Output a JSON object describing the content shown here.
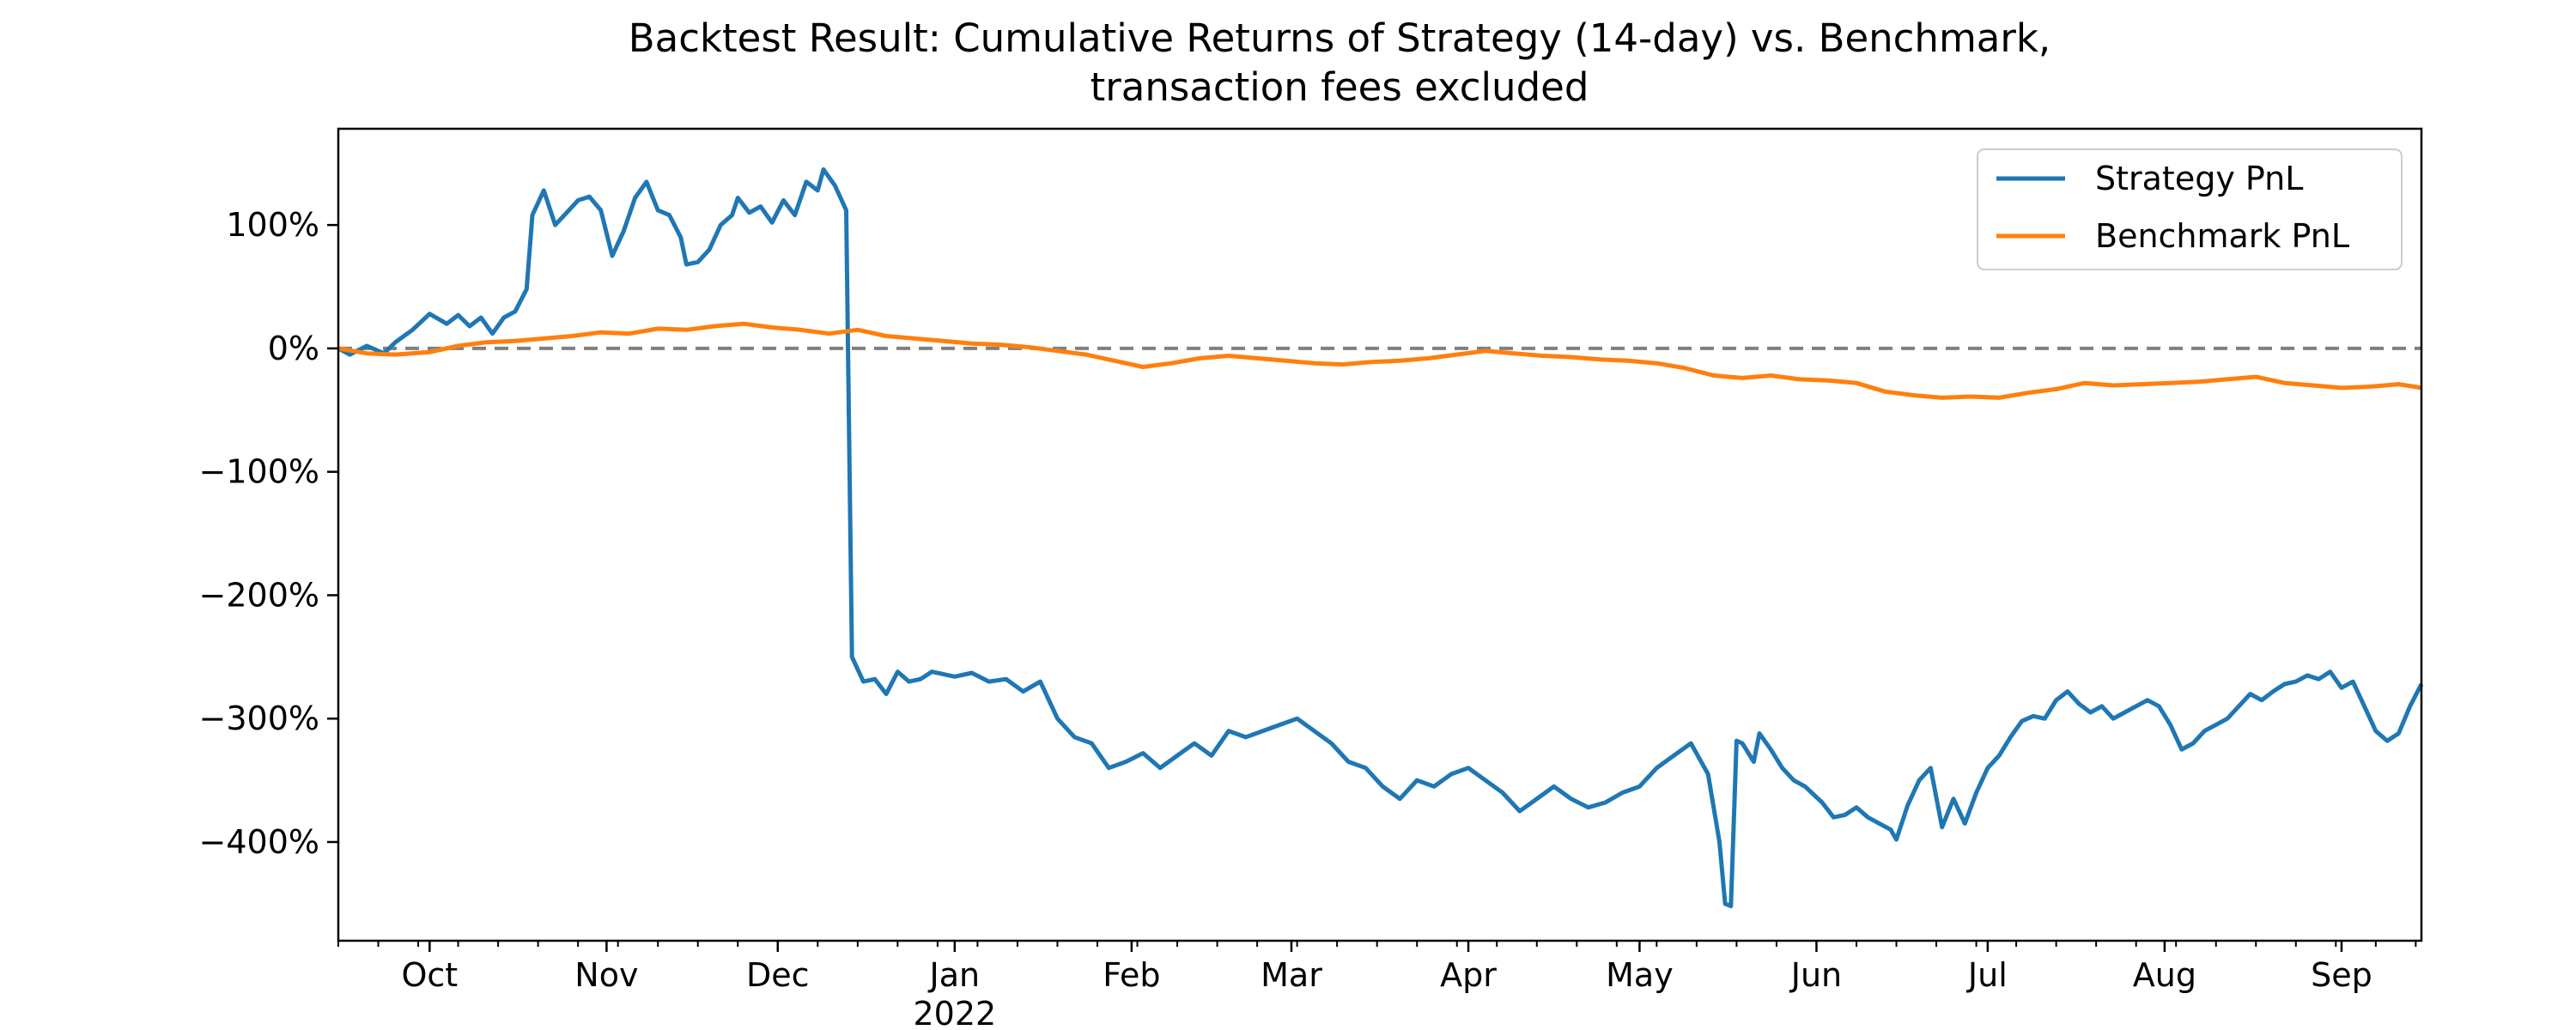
{
  "chart_data": {
    "type": "line",
    "title_line1": "Backtest Result: Cumulative Returns of Strategy (14-day) vs. Benchmark,",
    "title_line2": "transaction fees excluded",
    "xlabel": "",
    "ylabel": "",
    "y_unit": "%",
    "x_range": [
      "2021-09-15",
      "2022-09-15"
    ],
    "ylim": [
      -480,
      178
    ],
    "y_ticks": [
      {
        "value": 100,
        "label": "100%"
      },
      {
        "value": 0,
        "label": "0%"
      },
      {
        "value": -100,
        "label": "−100%"
      },
      {
        "value": -200,
        "label": "−200%"
      },
      {
        "value": -300,
        "label": "−300%"
      },
      {
        "value": -400,
        "label": "−400%"
      }
    ],
    "x_ticks": [
      {
        "date": "2021-10-01",
        "label": "Oct"
      },
      {
        "date": "2021-11-01",
        "label": "Nov"
      },
      {
        "date": "2021-12-01",
        "label": "Dec"
      },
      {
        "date": "2022-01-01",
        "label": "Jan",
        "sublabel": "2022"
      },
      {
        "date": "2022-02-01",
        "label": "Feb"
      },
      {
        "date": "2022-03-01",
        "label": "Mar"
      },
      {
        "date": "2022-04-01",
        "label": "Apr"
      },
      {
        "date": "2022-05-01",
        "label": "May"
      },
      {
        "date": "2022-06-01",
        "label": "Jun"
      },
      {
        "date": "2022-07-01",
        "label": "Jul"
      },
      {
        "date": "2022-08-01",
        "label": "Aug"
      },
      {
        "date": "2022-09-01",
        "label": "Sep"
      }
    ],
    "reference_line": {
      "y": 0,
      "style": "dashed",
      "color": "#808080"
    },
    "grid": false,
    "legend_position": "top-right",
    "series": [
      {
        "name": "Strategy PnL",
        "color": "#1f77b4",
        "points": [
          [
            "2021-09-15",
            0
          ],
          [
            "2021-09-17",
            -5
          ],
          [
            "2021-09-20",
            2
          ],
          [
            "2021-09-23",
            -4
          ],
          [
            "2021-09-25",
            5
          ],
          [
            "2021-09-28",
            15
          ],
          [
            "2021-10-01",
            28
          ],
          [
            "2021-10-04",
            20
          ],
          [
            "2021-10-06",
            27
          ],
          [
            "2021-10-08",
            18
          ],
          [
            "2021-10-10",
            25
          ],
          [
            "2021-10-12",
            12
          ],
          [
            "2021-10-14",
            25
          ],
          [
            "2021-10-16",
            30
          ],
          [
            "2021-10-18",
            48
          ],
          [
            "2021-10-19",
            108
          ],
          [
            "2021-10-21",
            128
          ],
          [
            "2021-10-23",
            100
          ],
          [
            "2021-10-25",
            110
          ],
          [
            "2021-10-27",
            120
          ],
          [
            "2021-10-29",
            123
          ],
          [
            "2021-10-31",
            112
          ],
          [
            "2021-11-02",
            75
          ],
          [
            "2021-11-04",
            95
          ],
          [
            "2021-11-06",
            122
          ],
          [
            "2021-11-08",
            135
          ],
          [
            "2021-11-10",
            112
          ],
          [
            "2021-11-12",
            108
          ],
          [
            "2021-11-14",
            90
          ],
          [
            "2021-11-15",
            68
          ],
          [
            "2021-11-17",
            70
          ],
          [
            "2021-11-19",
            80
          ],
          [
            "2021-11-21",
            100
          ],
          [
            "2021-11-23",
            108
          ],
          [
            "2021-11-24",
            122
          ],
          [
            "2021-11-26",
            110
          ],
          [
            "2021-11-28",
            115
          ],
          [
            "2021-11-30",
            102
          ],
          [
            "2021-12-02",
            120
          ],
          [
            "2021-12-04",
            108
          ],
          [
            "2021-12-06",
            135
          ],
          [
            "2021-12-08",
            128
          ],
          [
            "2021-12-09",
            145
          ],
          [
            "2021-12-11",
            132
          ],
          [
            "2021-12-13",
            112
          ],
          [
            "2021-12-14",
            -250
          ],
          [
            "2021-12-16",
            -270
          ],
          [
            "2021-12-18",
            -268
          ],
          [
            "2021-12-20",
            -280
          ],
          [
            "2021-12-22",
            -262
          ],
          [
            "2021-12-24",
            -270
          ],
          [
            "2021-12-26",
            -268
          ],
          [
            "2021-12-28",
            -262
          ],
          [
            "2022-01-01",
            -266
          ],
          [
            "2022-01-04",
            -263
          ],
          [
            "2022-01-07",
            -270
          ],
          [
            "2022-01-10",
            -268
          ],
          [
            "2022-01-13",
            -278
          ],
          [
            "2022-01-16",
            -270
          ],
          [
            "2022-01-19",
            -300
          ],
          [
            "2022-01-22",
            -315
          ],
          [
            "2022-01-25",
            -320
          ],
          [
            "2022-01-28",
            -340
          ],
          [
            "2022-01-31",
            -335
          ],
          [
            "2022-02-03",
            -328
          ],
          [
            "2022-02-06",
            -340
          ],
          [
            "2022-02-09",
            -330
          ],
          [
            "2022-02-12",
            -320
          ],
          [
            "2022-02-15",
            -330
          ],
          [
            "2022-02-18",
            -310
          ],
          [
            "2022-02-21",
            -315
          ],
          [
            "2022-02-24",
            -310
          ],
          [
            "2022-02-27",
            -305
          ],
          [
            "2022-03-02",
            -300
          ],
          [
            "2022-03-05",
            -310
          ],
          [
            "2022-03-08",
            -320
          ],
          [
            "2022-03-11",
            -335
          ],
          [
            "2022-03-14",
            -340
          ],
          [
            "2022-03-17",
            -355
          ],
          [
            "2022-03-20",
            -365
          ],
          [
            "2022-03-23",
            -350
          ],
          [
            "2022-03-26",
            -355
          ],
          [
            "2022-03-29",
            -345
          ],
          [
            "2022-04-01",
            -340
          ],
          [
            "2022-04-04",
            -350
          ],
          [
            "2022-04-07",
            -360
          ],
          [
            "2022-04-10",
            -375
          ],
          [
            "2022-04-13",
            -365
          ],
          [
            "2022-04-16",
            -355
          ],
          [
            "2022-04-19",
            -365
          ],
          [
            "2022-04-22",
            -372
          ],
          [
            "2022-04-25",
            -368
          ],
          [
            "2022-04-28",
            -360
          ],
          [
            "2022-05-01",
            -355
          ],
          [
            "2022-05-04",
            -340
          ],
          [
            "2022-05-07",
            -330
          ],
          [
            "2022-05-10",
            -320
          ],
          [
            "2022-05-13",
            -345
          ],
          [
            "2022-05-15",
            -400
          ],
          [
            "2022-05-16",
            -450
          ],
          [
            "2022-05-17",
            -452
          ],
          [
            "2022-05-18",
            -318
          ],
          [
            "2022-05-19",
            -320
          ],
          [
            "2022-05-21",
            -335
          ],
          [
            "2022-05-22",
            -312
          ],
          [
            "2022-05-24",
            -325
          ],
          [
            "2022-05-26",
            -340
          ],
          [
            "2022-05-28",
            -350
          ],
          [
            "2022-05-30",
            -355
          ],
          [
            "2022-06-02",
            -368
          ],
          [
            "2022-06-04",
            -380
          ],
          [
            "2022-06-06",
            -378
          ],
          [
            "2022-06-08",
            -372
          ],
          [
            "2022-06-10",
            -380
          ],
          [
            "2022-06-12",
            -385
          ],
          [
            "2022-06-14",
            -390
          ],
          [
            "2022-06-15",
            -398
          ],
          [
            "2022-06-17",
            -370
          ],
          [
            "2022-06-19",
            -350
          ],
          [
            "2022-06-21",
            -340
          ],
          [
            "2022-06-23",
            -388
          ],
          [
            "2022-06-25",
            -365
          ],
          [
            "2022-06-27",
            -385
          ],
          [
            "2022-06-29",
            -360
          ],
          [
            "2022-07-01",
            -340
          ],
          [
            "2022-07-03",
            -330
          ],
          [
            "2022-07-05",
            -315
          ],
          [
            "2022-07-07",
            -302
          ],
          [
            "2022-07-09",
            -298
          ],
          [
            "2022-07-11",
            -300
          ],
          [
            "2022-07-13",
            -285
          ],
          [
            "2022-07-15",
            -278
          ],
          [
            "2022-07-17",
            -288
          ],
          [
            "2022-07-19",
            -295
          ],
          [
            "2022-07-21",
            -290
          ],
          [
            "2022-07-23",
            -300
          ],
          [
            "2022-07-25",
            -295
          ],
          [
            "2022-07-27",
            -290
          ],
          [
            "2022-07-29",
            -285
          ],
          [
            "2022-07-31",
            -290
          ],
          [
            "2022-08-02",
            -305
          ],
          [
            "2022-08-04",
            -325
          ],
          [
            "2022-08-06",
            -320
          ],
          [
            "2022-08-08",
            -310
          ],
          [
            "2022-08-10",
            -305
          ],
          [
            "2022-08-12",
            -300
          ],
          [
            "2022-08-14",
            -290
          ],
          [
            "2022-08-16",
            -280
          ],
          [
            "2022-08-18",
            -285
          ],
          [
            "2022-08-20",
            -278
          ],
          [
            "2022-08-22",
            -272
          ],
          [
            "2022-08-24",
            -270
          ],
          [
            "2022-08-26",
            -265
          ],
          [
            "2022-08-28",
            -268
          ],
          [
            "2022-08-30",
            -262
          ],
          [
            "2022-09-01",
            -275
          ],
          [
            "2022-09-03",
            -270
          ],
          [
            "2022-09-05",
            -290
          ],
          [
            "2022-09-07",
            -310
          ],
          [
            "2022-09-09",
            -318
          ],
          [
            "2022-09-11",
            -312
          ],
          [
            "2022-09-13",
            -290
          ],
          [
            "2022-09-15",
            -272
          ]
        ]
      },
      {
        "name": "Benchmark PnL",
        "color": "#ff7f0e",
        "points": [
          [
            "2021-09-15",
            0
          ],
          [
            "2021-09-20",
            -4
          ],
          [
            "2021-09-25",
            -5
          ],
          [
            "2021-10-01",
            -3
          ],
          [
            "2021-10-06",
            2
          ],
          [
            "2021-10-11",
            5
          ],
          [
            "2021-10-16",
            6
          ],
          [
            "2021-10-21",
            8
          ],
          [
            "2021-10-26",
            10
          ],
          [
            "2021-10-31",
            13
          ],
          [
            "2021-11-05",
            12
          ],
          [
            "2021-11-10",
            16
          ],
          [
            "2021-11-15",
            15
          ],
          [
            "2021-11-20",
            18
          ],
          [
            "2021-11-25",
            20
          ],
          [
            "2021-11-30",
            17
          ],
          [
            "2021-12-05",
            15
          ],
          [
            "2021-12-10",
            12
          ],
          [
            "2021-12-15",
            15
          ],
          [
            "2021-12-20",
            10
          ],
          [
            "2021-12-25",
            8
          ],
          [
            "2021-12-30",
            6
          ],
          [
            "2022-01-04",
            4
          ],
          [
            "2022-01-09",
            3
          ],
          [
            "2022-01-14",
            1
          ],
          [
            "2022-01-19",
            -2
          ],
          [
            "2022-01-24",
            -5
          ],
          [
            "2022-01-29",
            -10
          ],
          [
            "2022-02-03",
            -15
          ],
          [
            "2022-02-08",
            -12
          ],
          [
            "2022-02-13",
            -8
          ],
          [
            "2022-02-18",
            -6
          ],
          [
            "2022-02-23",
            -8
          ],
          [
            "2022-02-28",
            -10
          ],
          [
            "2022-03-05",
            -12
          ],
          [
            "2022-03-10",
            -13
          ],
          [
            "2022-03-15",
            -11
          ],
          [
            "2022-03-20",
            -10
          ],
          [
            "2022-03-25",
            -8
          ],
          [
            "2022-03-30",
            -5
          ],
          [
            "2022-04-04",
            -2
          ],
          [
            "2022-04-09",
            -4
          ],
          [
            "2022-04-14",
            -6
          ],
          [
            "2022-04-19",
            -7
          ],
          [
            "2022-04-24",
            -9
          ],
          [
            "2022-04-29",
            -10
          ],
          [
            "2022-05-04",
            -12
          ],
          [
            "2022-05-09",
            -16
          ],
          [
            "2022-05-14",
            -22
          ],
          [
            "2022-05-19",
            -24
          ],
          [
            "2022-05-24",
            -22
          ],
          [
            "2022-05-29",
            -25
          ],
          [
            "2022-06-03",
            -26
          ],
          [
            "2022-06-08",
            -28
          ],
          [
            "2022-06-13",
            -35
          ],
          [
            "2022-06-18",
            -38
          ],
          [
            "2022-06-23",
            -40
          ],
          [
            "2022-06-28",
            -39
          ],
          [
            "2022-07-03",
            -40
          ],
          [
            "2022-07-08",
            -36
          ],
          [
            "2022-07-13",
            -33
          ],
          [
            "2022-07-18",
            -28
          ],
          [
            "2022-07-23",
            -30
          ],
          [
            "2022-07-28",
            -29
          ],
          [
            "2022-08-02",
            -28
          ],
          [
            "2022-08-07",
            -27
          ],
          [
            "2022-08-12",
            -25
          ],
          [
            "2022-08-17",
            -23
          ],
          [
            "2022-08-22",
            -28
          ],
          [
            "2022-08-27",
            -30
          ],
          [
            "2022-09-01",
            -32
          ],
          [
            "2022-09-06",
            -31
          ],
          [
            "2022-09-11",
            -29
          ],
          [
            "2022-09-15",
            -32
          ]
        ]
      }
    ]
  }
}
